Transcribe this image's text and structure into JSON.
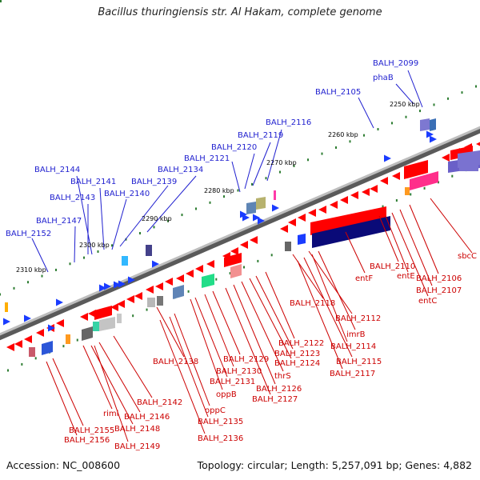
{
  "title": "Bacillus thuringiensis str. Al Hakam, complete genome",
  "footer": {
    "accession": "Accession: NC_008600",
    "info": "Topology: circular; Length: 5,257,091 bp; Genes: 4,882"
  },
  "colors": {
    "top_label": "#1f1fcf",
    "bottom_label": "#cc0000",
    "backbone": "#8c8c8c",
    "tick": "#2e7d32",
    "forward_gene": "#ff0000",
    "reverse_gene": "#1a3cff",
    "dark_block": "#0a0a78"
  },
  "scale_labels": [
    "2250 kbp",
    "2260 kbp",
    "2270 kbp",
    "2280 kbp",
    "2290 kbp",
    "2300 kbp",
    "2310 kbp"
  ],
  "top_labels": [
    "BALH_2099",
    "phaB",
    "BALH_2105",
    "BALH_2116",
    "BALH_2119",
    "BALH_2120",
    "BALH_2121",
    "BALH_2134",
    "BALH_2139",
    "BALH_2140",
    "BALH_2141",
    "BALH_2144",
    "BALH_2143",
    "BALH_2147",
    "BALH_2152"
  ],
  "bottom_labels": [
    "sbcC",
    "BALH_2106",
    "BALH_2107",
    "entC",
    "BALH_2110",
    "entE",
    "entF",
    "BALH_2118",
    "BALH_2112",
    "imrB",
    "BALH_2114",
    "BALH_2115",
    "BALH_2117",
    "BALH_2122",
    "BALH_2123",
    "BALH_2124",
    "thrS",
    "BALH_2126",
    "BALH_2127",
    "BALH_2129",
    "BALH_2130",
    "BALH_2131",
    "oppB",
    "BALH_2138",
    "oppC",
    "BALH_2135",
    "BALH_2136",
    "BALH_2142",
    "riml",
    "BALH_2146",
    "BALH_2148",
    "BALH_2149",
    "BALH_2155",
    "BALH_2156"
  ]
}
